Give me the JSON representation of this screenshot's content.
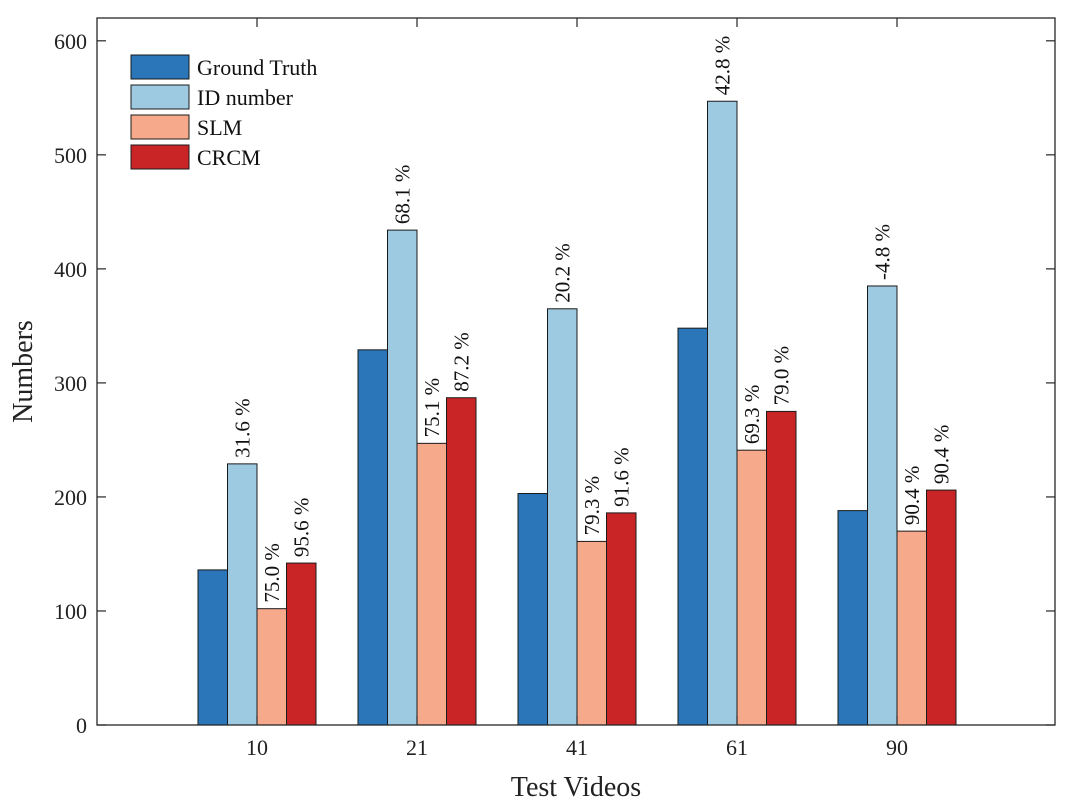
{
  "chart_data": {
    "type": "bar",
    "title": "",
    "xlabel": "Test Videos",
    "ylabel": "Numbers",
    "ylim": [
      0,
      620
    ],
    "yticks": [
      0,
      100,
      200,
      300,
      400,
      500,
      600
    ],
    "categories": [
      "10",
      "21",
      "41",
      "61",
      "90"
    ],
    "legend_position": "top-left",
    "series": [
      {
        "name": "Ground Truth",
        "color": "#2a76b8",
        "values": [
          136,
          329,
          203,
          348,
          188
        ],
        "labels": [
          "",
          "",
          "",
          "",
          ""
        ]
      },
      {
        "name": "ID number",
        "color": "#9ecae1",
        "values": [
          229,
          434,
          365,
          547,
          385
        ],
        "labels": [
          "31.6 %",
          "68.1 %",
          "20.2 %",
          "42.8 %",
          "-4.8 %"
        ]
      },
      {
        "name": "SLM",
        "color": "#f6aa8b",
        "values": [
          102,
          247,
          161,
          241,
          170
        ],
        "labels": [
          "75.0 %",
          "75.1 %",
          "79.3 %",
          "69.3 %",
          "90.4 %"
        ]
      },
      {
        "name": "CRCM",
        "color": "#c92527",
        "values": [
          142,
          287,
          186,
          275,
          206
        ],
        "labels": [
          "95.6 %",
          "87.2 %",
          "91.6 %",
          "79.0 %",
          "90.4 %"
        ]
      }
    ]
  }
}
